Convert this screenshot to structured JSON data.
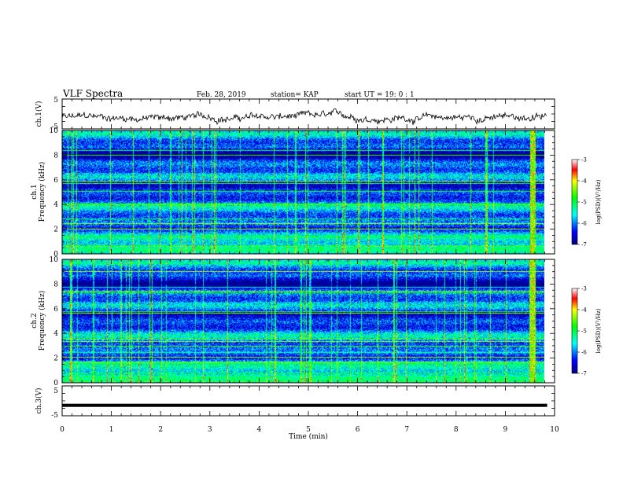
{
  "header": {
    "title": "VLF Spectra",
    "date": "Feb. 28, 2019",
    "station": "station= KAP",
    "start": "start UT =   19: 0  : 1"
  },
  "chart_data": [
    {
      "type": "line",
      "name": "ch1-waveform",
      "ylabel": "ch.1(V)",
      "ylim": [
        -5,
        5
      ],
      "yticks": [
        "5",
        "-5"
      ],
      "xlim": [
        0,
        10
      ],
      "data_extent": [
        0,
        9.85
      ],
      "mean_level": -1.2,
      "amplitude": 1.5
    },
    {
      "type": "heatmap",
      "name": "ch1-spectrogram",
      "ylabel_line1": "ch.1",
      "ylabel_line2": "Frequency (kHz)",
      "ylim": [
        0,
        10
      ],
      "yticks": [
        "0",
        "2",
        "4",
        "6",
        "8",
        "10"
      ],
      "xlim": [
        0,
        10
      ],
      "data_extent": [
        0,
        9.85
      ],
      "burst_minute": 9.55,
      "colorbar": {
        "label": "log(PSD)(V²/Hz)",
        "range": [
          -7,
          -3
        ],
        "ticks": [
          "-3",
          "-4",
          "-5",
          "-6",
          "-7"
        ]
      }
    },
    {
      "type": "heatmap",
      "name": "ch2-spectrogram",
      "ylabel_line1": "ch.2",
      "ylabel_line2": "Frequency (kHz)",
      "ylim": [
        0,
        10
      ],
      "yticks": [
        "0",
        "2",
        "4",
        "6",
        "8",
        "10"
      ],
      "xlim": [
        0,
        10
      ],
      "data_extent": [
        0,
        9.85
      ],
      "burst_minute": 9.55,
      "colorbar": {
        "label": "log(PSD)(V²/Hz)",
        "range": [
          -7,
          -3
        ],
        "ticks": [
          "-3",
          "-4",
          "-5",
          "-6",
          "-7"
        ]
      }
    },
    {
      "type": "line",
      "name": "ch3-waveform",
      "ylabel": "ch.3(V)",
      "ylim": [
        -5,
        5
      ],
      "yticks": [
        "5",
        "-5"
      ],
      "xlim": [
        0,
        10
      ],
      "data_extent": [
        0,
        9.85
      ],
      "mean_level": -1.5,
      "xlabel": "Time  (min)",
      "xticks": [
        "0",
        "1",
        "2",
        "3",
        "4",
        "5",
        "6",
        "7",
        "8",
        "9",
        "10"
      ]
    }
  ]
}
